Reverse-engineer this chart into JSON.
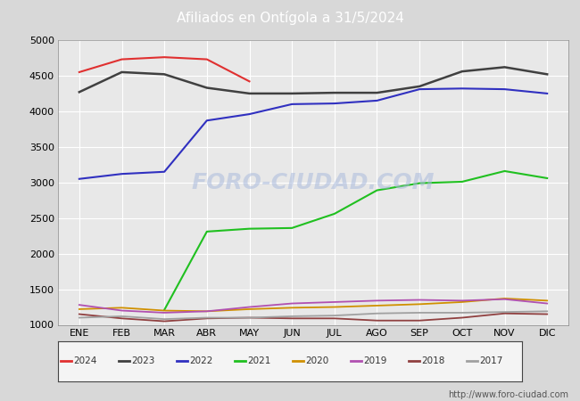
{
  "title": "Afiliados en Ontígola a 31/5/2024",
  "title_bg_color": "#5577cc",
  "title_text_color": "#ffffff",
  "background_color": "#d8d8d8",
  "plot_bg_color": "#e8e8e8",
  "ylim": [
    1000,
    5000
  ],
  "yticks": [
    1000,
    1500,
    2000,
    2500,
    3000,
    3500,
    4000,
    4500,
    5000
  ],
  "months": [
    "ENE",
    "FEB",
    "MAR",
    "ABR",
    "MAY",
    "JUN",
    "JUL",
    "AGO",
    "SEP",
    "OCT",
    "NOV",
    "DIC"
  ],
  "watermark": "FORO-CIUDAD.COM",
  "url": "http://www.foro-ciudad.com",
  "series": {
    "2024": {
      "color": "#e03030",
      "linewidth": 1.5,
      "data": [
        4550,
        4730,
        4760,
        4730,
        4420,
        null,
        null,
        null,
        null,
        null,
        null,
        null
      ]
    },
    "2023": {
      "color": "#404040",
      "linewidth": 1.8,
      "data": [
        4270,
        4550,
        4520,
        4330,
        4250,
        4250,
        4260,
        4260,
        4350,
        4560,
        4620,
        4520
      ]
    },
    "2022": {
      "color": "#3030c0",
      "linewidth": 1.5,
      "data": [
        3050,
        3120,
        3150,
        3870,
        3960,
        4100,
        4110,
        4150,
        4310,
        4320,
        4310,
        4250
      ]
    },
    "2021": {
      "color": "#20c020",
      "linewidth": 1.5,
      "data": [
        null,
        null,
        1210,
        2310,
        2350,
        2360,
        2560,
        2890,
        2990,
        3010,
        3160,
        3060
      ]
    },
    "2020": {
      "color": "#d09000",
      "linewidth": 1.3,
      "data": [
        1220,
        1240,
        1200,
        1190,
        1220,
        1240,
        1250,
        1270,
        1290,
        1320,
        1370,
        1340
      ]
    },
    "2019": {
      "color": "#b050b0",
      "linewidth": 1.3,
      "data": [
        1280,
        1200,
        1170,
        1190,
        1250,
        1300,
        1320,
        1340,
        1350,
        1340,
        1360,
        1300
      ]
    },
    "2018": {
      "color": "#904040",
      "linewidth": 1.3,
      "data": [
        1150,
        1090,
        1050,
        1090,
        1100,
        1090,
        1090,
        1060,
        1060,
        1100,
        1160,
        1150
      ]
    },
    "2017": {
      "color": "#a0a0a0",
      "linewidth": 1.3,
      "data": [
        1100,
        1120,
        1080,
        1100,
        1100,
        1120,
        1130,
        1160,
        1170,
        1170,
        1180,
        1190
      ]
    }
  }
}
